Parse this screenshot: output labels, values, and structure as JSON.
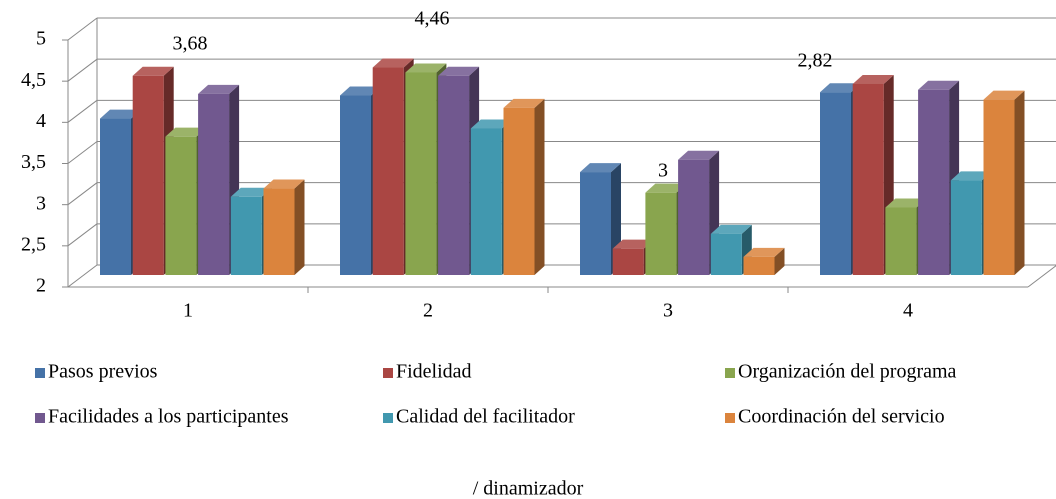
{
  "chart_data": {
    "type": "bar3d",
    "categories": [
      "1",
      "2",
      "3",
      "4"
    ],
    "series": [
      {
        "name": "Pasos previos",
        "color": "#4572a7",
        "values": [
          3.9,
          4.18,
          3.25,
          4.22
        ]
      },
      {
        "name": "Fidelidad",
        "color": "#aa4643",
        "values": [
          4.42,
          4.52,
          2.32,
          4.32
        ]
      },
      {
        "name": "Organización del programa",
        "color": "#89a54e",
        "values": [
          3.68,
          4.46,
          3,
          2.82
        ],
        "value_labels": [
          "3,68",
          "4,46",
          "3",
          "2,82"
        ]
      },
      {
        "name": "Facilidades a los participantes",
        "color": "#71588f",
        "values": [
          4.2,
          4.42,
          3.4,
          4.25
        ]
      },
      {
        "name": "Calidad del facilitador",
        "color": "#4198af",
        "values": [
          2.95,
          3.78,
          2.5,
          3.15
        ]
      },
      {
        "name": "Coordinación del servicio",
        "color": "#db843d",
        "values": [
          3.05,
          4.03,
          2.22,
          4.13
        ]
      }
    ],
    "ylim": [
      2,
      5
    ],
    "yticks": [
      2,
      {
        "value": 2.5,
        "label": "2,5"
      },
      3,
      {
        "value": 3.5,
        "label": "3,5"
      },
      4,
      {
        "value": 4.5,
        "label": "4,5"
      },
      5
    ],
    "grid": true,
    "legend": "bottom",
    "footnote": "/ dinamizador"
  }
}
